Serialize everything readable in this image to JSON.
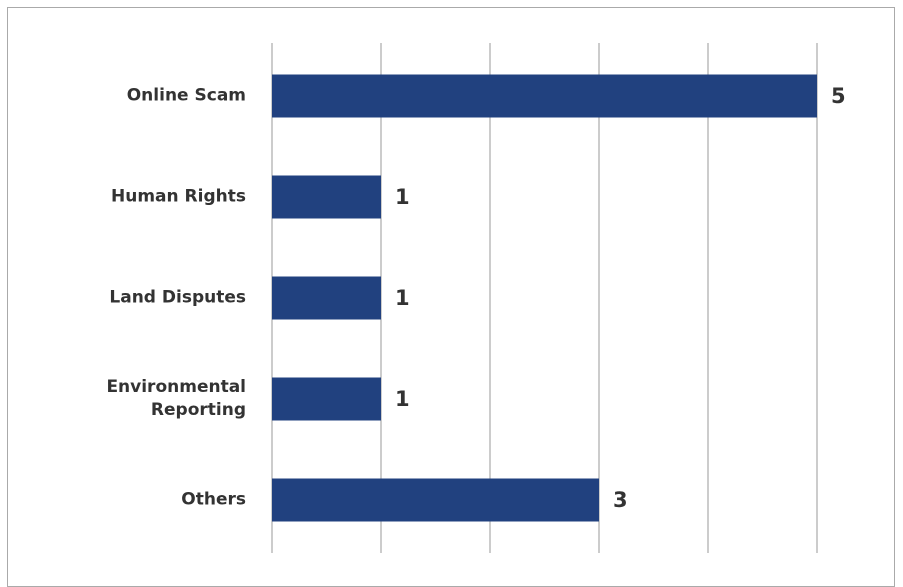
{
  "chart_data": {
    "type": "barh",
    "categories": [
      "Online Scam",
      "Human Rights",
      "Land Disputes",
      "Environmental Reporting",
      "Others"
    ],
    "values": [
      5,
      1,
      1,
      1,
      3
    ],
    "color": "#21417f",
    "xlim": [
      0,
      5
    ],
    "xticks": [
      0,
      1,
      2,
      3,
      4,
      5
    ],
    "grid": true
  }
}
